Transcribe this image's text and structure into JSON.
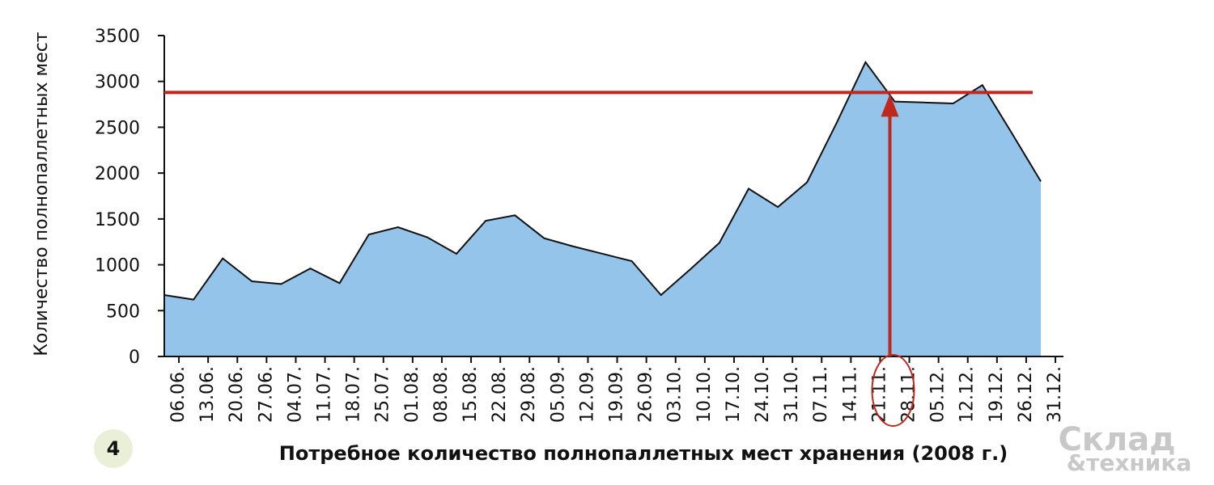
{
  "chart_data": {
    "type": "area",
    "title": "Потребное количество полнопаллетных мест хранения (2008 г.)",
    "ylabel": "Количество полнопаллетных мест",
    "categories": [
      "06.06.",
      "13.06.",
      "20.06.",
      "27.06.",
      "04.07.",
      "11.07.",
      "18.07.",
      "25.07.",
      "01.08.",
      "08.08.",
      "15.08.",
      "22.08.",
      "29.08.",
      "05.09.",
      "12.09.",
      "19.09.",
      "26.09.",
      "03.10.",
      "10.10.",
      "17.10.",
      "24.10.",
      "31.10.",
      "07.11.",
      "14.11.",
      "21.11.",
      "28.11.",
      "05.12.",
      "12.12.",
      "19.12.",
      "26.12.",
      "31.12."
    ],
    "values": [
      670,
      620,
      1070,
      820,
      790,
      960,
      800,
      1330,
      1410,
      1300,
      1120,
      1480,
      1540,
      1290,
      1200,
      1120,
      1040,
      670,
      950,
      1240,
      1830,
      1630,
      1900,
      2540,
      3210,
      2780,
      2770,
      2760,
      2960,
      2440,
      1910
    ],
    "color": "#94c4ea",
    "ylim": [
      0,
      3500
    ],
    "yticks": [
      0,
      500,
      1000,
      1500,
      2000,
      2500,
      3000,
      3500
    ],
    "reference_line": {
      "value": 2880,
      "color": "#c0281e"
    },
    "highlight_category": 25,
    "figure_number": "4",
    "logo": {
      "line1": "Склад",
      "line2": "&техника"
    }
  }
}
